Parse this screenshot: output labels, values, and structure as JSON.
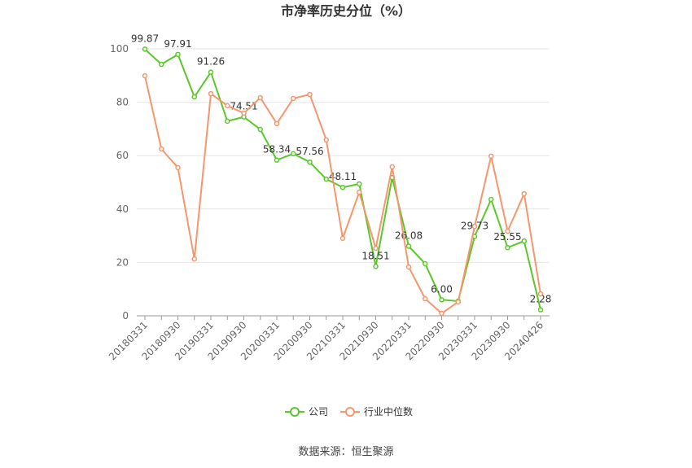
{
  "chart_data": {
    "type": "line",
    "title": "市净率历史分位（%）",
    "source": "数据来源：恒生聚源",
    "categories": [
      "20180331",
      null,
      "20180930",
      null,
      "20190331",
      null,
      "20190930",
      null,
      "20200331",
      null,
      "20200930",
      null,
      "20210331",
      null,
      "20210930",
      null,
      "20220331",
      null,
      "20220930",
      null,
      "20230331",
      null,
      "20230930",
      null,
      "20240426"
    ],
    "series": [
      {
        "name": "公司",
        "color": "#5cc72c",
        "values": [
          99.87,
          94.2,
          97.91,
          82.0,
          91.26,
          72.9,
          74.51,
          69.8,
          58.34,
          60.7,
          57.56,
          51.2,
          48.11,
          49.4,
          18.51,
          51.8,
          26.08,
          19.5,
          6.0,
          5.5,
          29.73,
          43.6,
          25.55,
          28.0,
          2.28
        ],
        "value_labels": [
          "99.87",
          null,
          "97.91",
          null,
          "91.26",
          null,
          "74.51",
          null,
          "58.34",
          null,
          "57.56",
          null,
          "48.11",
          null,
          "18.51",
          null,
          "26.08",
          null,
          "6.00",
          null,
          "29.73",
          null,
          "25.55",
          null,
          "2.28"
        ]
      },
      {
        "name": "行业中位数",
        "color": "#f5966c",
        "values": [
          89.9,
          62.5,
          55.5,
          21.3,
          83.2,
          78.7,
          75.9,
          81.7,
          72.0,
          81.4,
          82.9,
          65.9,
          29.0,
          46.3,
          25.3,
          55.8,
          18.3,
          6.4,
          0.9,
          5.2,
          33.5,
          59.8,
          31.7,
          45.7,
          8.2
        ]
      }
    ],
    "ylim": [
      0,
      100
    ],
    "yticks": [
      0,
      20,
      40,
      60,
      80,
      100
    ],
    "grid": true
  }
}
